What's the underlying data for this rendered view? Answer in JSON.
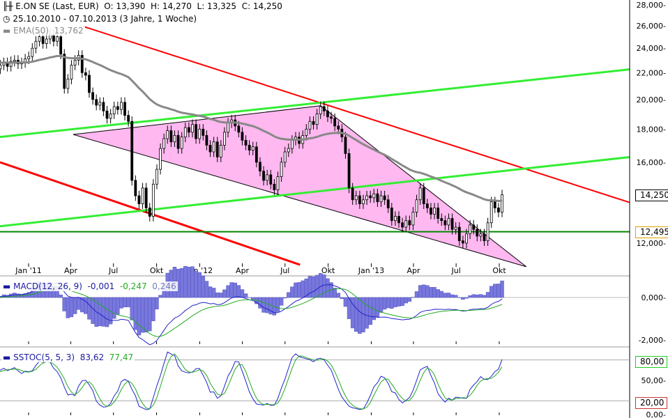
{
  "legend": {
    "title": "E.ON SE (Last, EUR)",
    "open": "O: 13,390",
    "high": "H: 14,270",
    "low": "L: 13,325",
    "close": "C: 14,250",
    "range": "25.10.2010 - 07.10.2013 (3 Jahre, 1 Woche)",
    "ema_label": "EMA(50)",
    "ema_value": "13,762",
    "macd_label": "MACD(12, 26, 9)",
    "macd_v1": "-0,001",
    "macd_v2": "-0,247",
    "macd_v3": "0,246",
    "sstoc_label": "SSTOC(5, 5, 3)",
    "sstoc_v1": "83,62",
    "sstoc_v2": "77,47"
  },
  "colors": {
    "ema": "#888888",
    "trend_red": "#ff0000",
    "trend_green": "#33ee33",
    "support": "#008800",
    "triangle": "#ffb8f0",
    "macd": "#2222cc",
    "signal": "#22aa22",
    "histogram": "#7777dd",
    "tag_support": "#e0a000"
  },
  "chart_data": [
    {
      "type": "candlestick",
      "scale": "log",
      "ylim": [
        11000,
        28000
      ],
      "yticks": [
        "28,000",
        "26,000",
        "24,000",
        "22,000",
        "20,000",
        "18,000",
        "16,000",
        "12,000"
      ],
      "ytick_values": [
        28000,
        26000,
        24000,
        22000,
        20000,
        18000,
        16000,
        12000
      ],
      "xticks": [
        {
          "label": "Jan '11",
          "date": "2011-01-01"
        },
        {
          "label": "Apr",
          "date": "2011-04-01"
        },
        {
          "label": "Jul",
          "date": "2011-07-01"
        },
        {
          "label": "Okt",
          "date": "2011-10-01"
        },
        {
          "label": "Jan '12",
          "date": "2012-01-01"
        },
        {
          "label": "Apr",
          "date": "2012-04-01"
        },
        {
          "label": "Jul",
          "date": "2012-07-01"
        },
        {
          "label": "Okt",
          "date": "2012-10-01"
        },
        {
          "label": "Jan '13",
          "date": "2013-01-01"
        },
        {
          "label": "Apr",
          "date": "2013-04-01"
        },
        {
          "label": "Jul",
          "date": "2013-07-01"
        },
        {
          "label": "Okt",
          "date": "2013-10-01"
        }
      ],
      "weekly_close": [
        22.3,
        22.6,
        22.8,
        22.5,
        22.9,
        23.0,
        22.7,
        22.8,
        23.1,
        23.3,
        24.0,
        24.6,
        25.0,
        24.4,
        24.8,
        25.2,
        24.6,
        25.0,
        23.5,
        20.8,
        21.5,
        22.6,
        23.0,
        23.4,
        22.0,
        21.8,
        20.5,
        20.0,
        19.6,
        19.8,
        19.2,
        18.7,
        19.0,
        19.5,
        19.3,
        19.8,
        18.9,
        18.5,
        15.0,
        14.2,
        13.8,
        14.6,
        13.6,
        13.2,
        14.8,
        15.6,
        16.8,
        17.4,
        17.9,
        17.2,
        17.6,
        16.8,
        17.5,
        18.1,
        17.8,
        18.3,
        17.4,
        18.0,
        17.6,
        17.0,
        16.6,
        17.2,
        16.3,
        17.0,
        17.8,
        18.4,
        18.6,
        18.2,
        17.8,
        17.3,
        17.0,
        16.7,
        16.9,
        16.0,
        15.5,
        15.0,
        15.3,
        14.8,
        14.5,
        15.2,
        16.0,
        16.6,
        16.8,
        17.3,
        17.5,
        17.1,
        17.6,
        18.0,
        18.5,
        18.3,
        19.0,
        19.5,
        19.2,
        18.8,
        18.7,
        18.2,
        18.0,
        17.5,
        16.5,
        14.6,
        14.0,
        14.2,
        13.8,
        14.0,
        14.2,
        14.1,
        14.3,
        13.9,
        14.2,
        14.0,
        13.6,
        13.0,
        13.2,
        12.9,
        12.7,
        13.0,
        12.8,
        13.4,
        14.0,
        14.6,
        13.8,
        13.6,
        13.3,
        13.6,
        13.1,
        13.0,
        12.8,
        13.1,
        12.6,
        12.7,
        12.1,
        12.0,
        12.4,
        12.8,
        12.6,
        12.3,
        12.4,
        12.1,
        12.9,
        13.9,
        13.6,
        13.4,
        14.25
      ],
      "trendlines": [
        {
          "name": "red-upper",
          "color": "#ff0000",
          "points": [
            [
              "2011-04-28",
              25930
            ],
            [
              "2014-09-26",
              13270
            ]
          ]
        },
        {
          "name": "red-lower",
          "color": "#ff0000",
          "points": [
            [
              "2010-11-01",
              16000
            ],
            [
              "2012-08-02",
              11110
            ]
          ]
        },
        {
          "name": "green-upper",
          "color": "#33ee33",
          "points": [
            [
              "2010-11-01",
              17500
            ],
            [
              "2014-09-26",
              22590
            ]
          ]
        },
        {
          "name": "green-middle",
          "color": "#33ee33",
          "points": [
            [
              "2010-11-01",
              12740
            ],
            [
              "2014-09-26",
              16540
            ]
          ]
        }
      ],
      "support_level": {
        "value": 12495,
        "label": "12,495"
      },
      "last_price": {
        "value": 14250,
        "label": "14,250"
      },
      "triangle": [
        [
          "2011-04-06",
          17660
        ],
        [
          "2012-09-15",
          19560
        ],
        [
          "2013-11-28",
          11030
        ]
      ]
    },
    {
      "type": "line",
      "name": "MACD",
      "yticks": [
        "0,000",
        "-2,000"
      ],
      "ytick_values": [
        0,
        -2
      ]
    },
    {
      "type": "line",
      "name": "SSTOC",
      "yticks": [
        "80,00",
        "50,00",
        "20,00",
        "0,00"
      ],
      "ytick_values": [
        80,
        50,
        20,
        0
      ],
      "tag_high": "80,00",
      "tag_low": "20,00"
    }
  ]
}
